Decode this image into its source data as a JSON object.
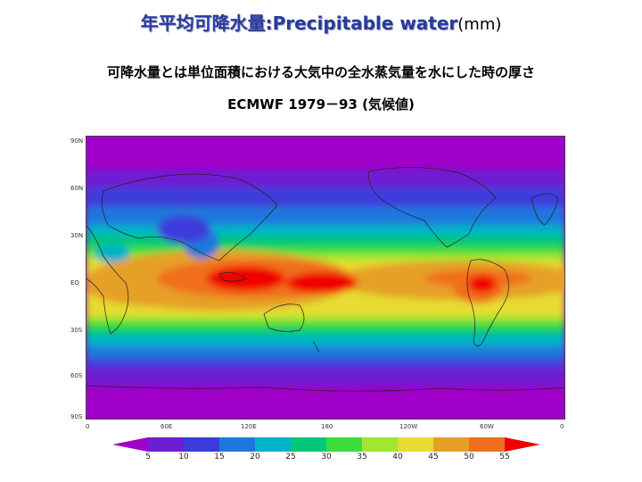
{
  "title": {
    "main": "年平均可降水量:Precipitable water",
    "unit": "(mm)"
  },
  "subtitle": "可降水量とは単位面積における大気中の全水蒸気量を水にした時の厚さ",
  "source": "ECMWF 1979－93 (気候値)",
  "axes": {
    "lat_labels": [
      "90N",
      "60N",
      "30N",
      "EQ",
      "30S",
      "60S",
      "90S"
    ],
    "lon_labels": [
      "0",
      "60E",
      "120E",
      "180",
      "120W",
      "60W",
      "0"
    ]
  },
  "colorbar": {
    "levels": [
      "5",
      "10",
      "15",
      "20",
      "25",
      "30",
      "35",
      "40",
      "45",
      "50",
      "55"
    ],
    "colors": [
      "#a000c8",
      "#6e1ed2",
      "#3c3cdc",
      "#1e78dc",
      "#00b4c8",
      "#00c878",
      "#3cdc3c",
      "#a0e632",
      "#e6dc32",
      "#e6a028",
      "#f06e1e",
      "#f00000"
    ]
  },
  "colors": {
    "title": "#2a3a9a",
    "coast": "#222222"
  }
}
